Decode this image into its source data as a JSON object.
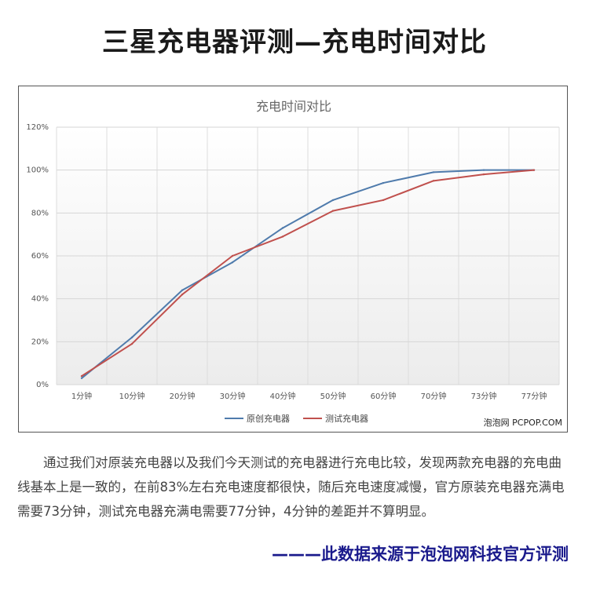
{
  "page": {
    "title": "三星充电器评测—充电时间对比",
    "watermark": "泡泡网 PCPOP.COM",
    "paragraph": "通过我们对原装充电器以及我们今天测试的充电器进行充电比较，发现两款充电器的充电曲线基本上是一致的，在前83%左右充电速度都很快，随后充电速度减慢，官方原装充电器充满电需要73分钟，测试充电器充满电需要77分钟，4分钟的差距并不算明显。",
    "source": "———此数据来源于泡泡网科技官方评测"
  },
  "chart_data": {
    "type": "line",
    "title": "充电时间对比",
    "categories": [
      "1分钟",
      "10分钟",
      "20分钟",
      "30分钟",
      "40分钟",
      "50分钟",
      "60分钟",
      "70分钟",
      "73分钟",
      "77分钟"
    ],
    "ylim": [
      0,
      120
    ],
    "yticks": [
      "0%",
      "20%",
      "40%",
      "60%",
      "80%",
      "100%",
      "120%"
    ],
    "ytick_values": [
      0,
      20,
      40,
      60,
      80,
      100,
      120
    ],
    "grid": true,
    "legend": "bottom",
    "series": [
      {
        "name": "原创充电器",
        "color": "#4f7bac",
        "values": [
          3,
          22,
          44,
          57,
          73,
          86,
          94,
          99,
          100,
          100
        ]
      },
      {
        "name": "测试充电器",
        "color": "#c0504d",
        "values": [
          4,
          19,
          42,
          60,
          69,
          81,
          86,
          95,
          98,
          100
        ]
      }
    ]
  }
}
